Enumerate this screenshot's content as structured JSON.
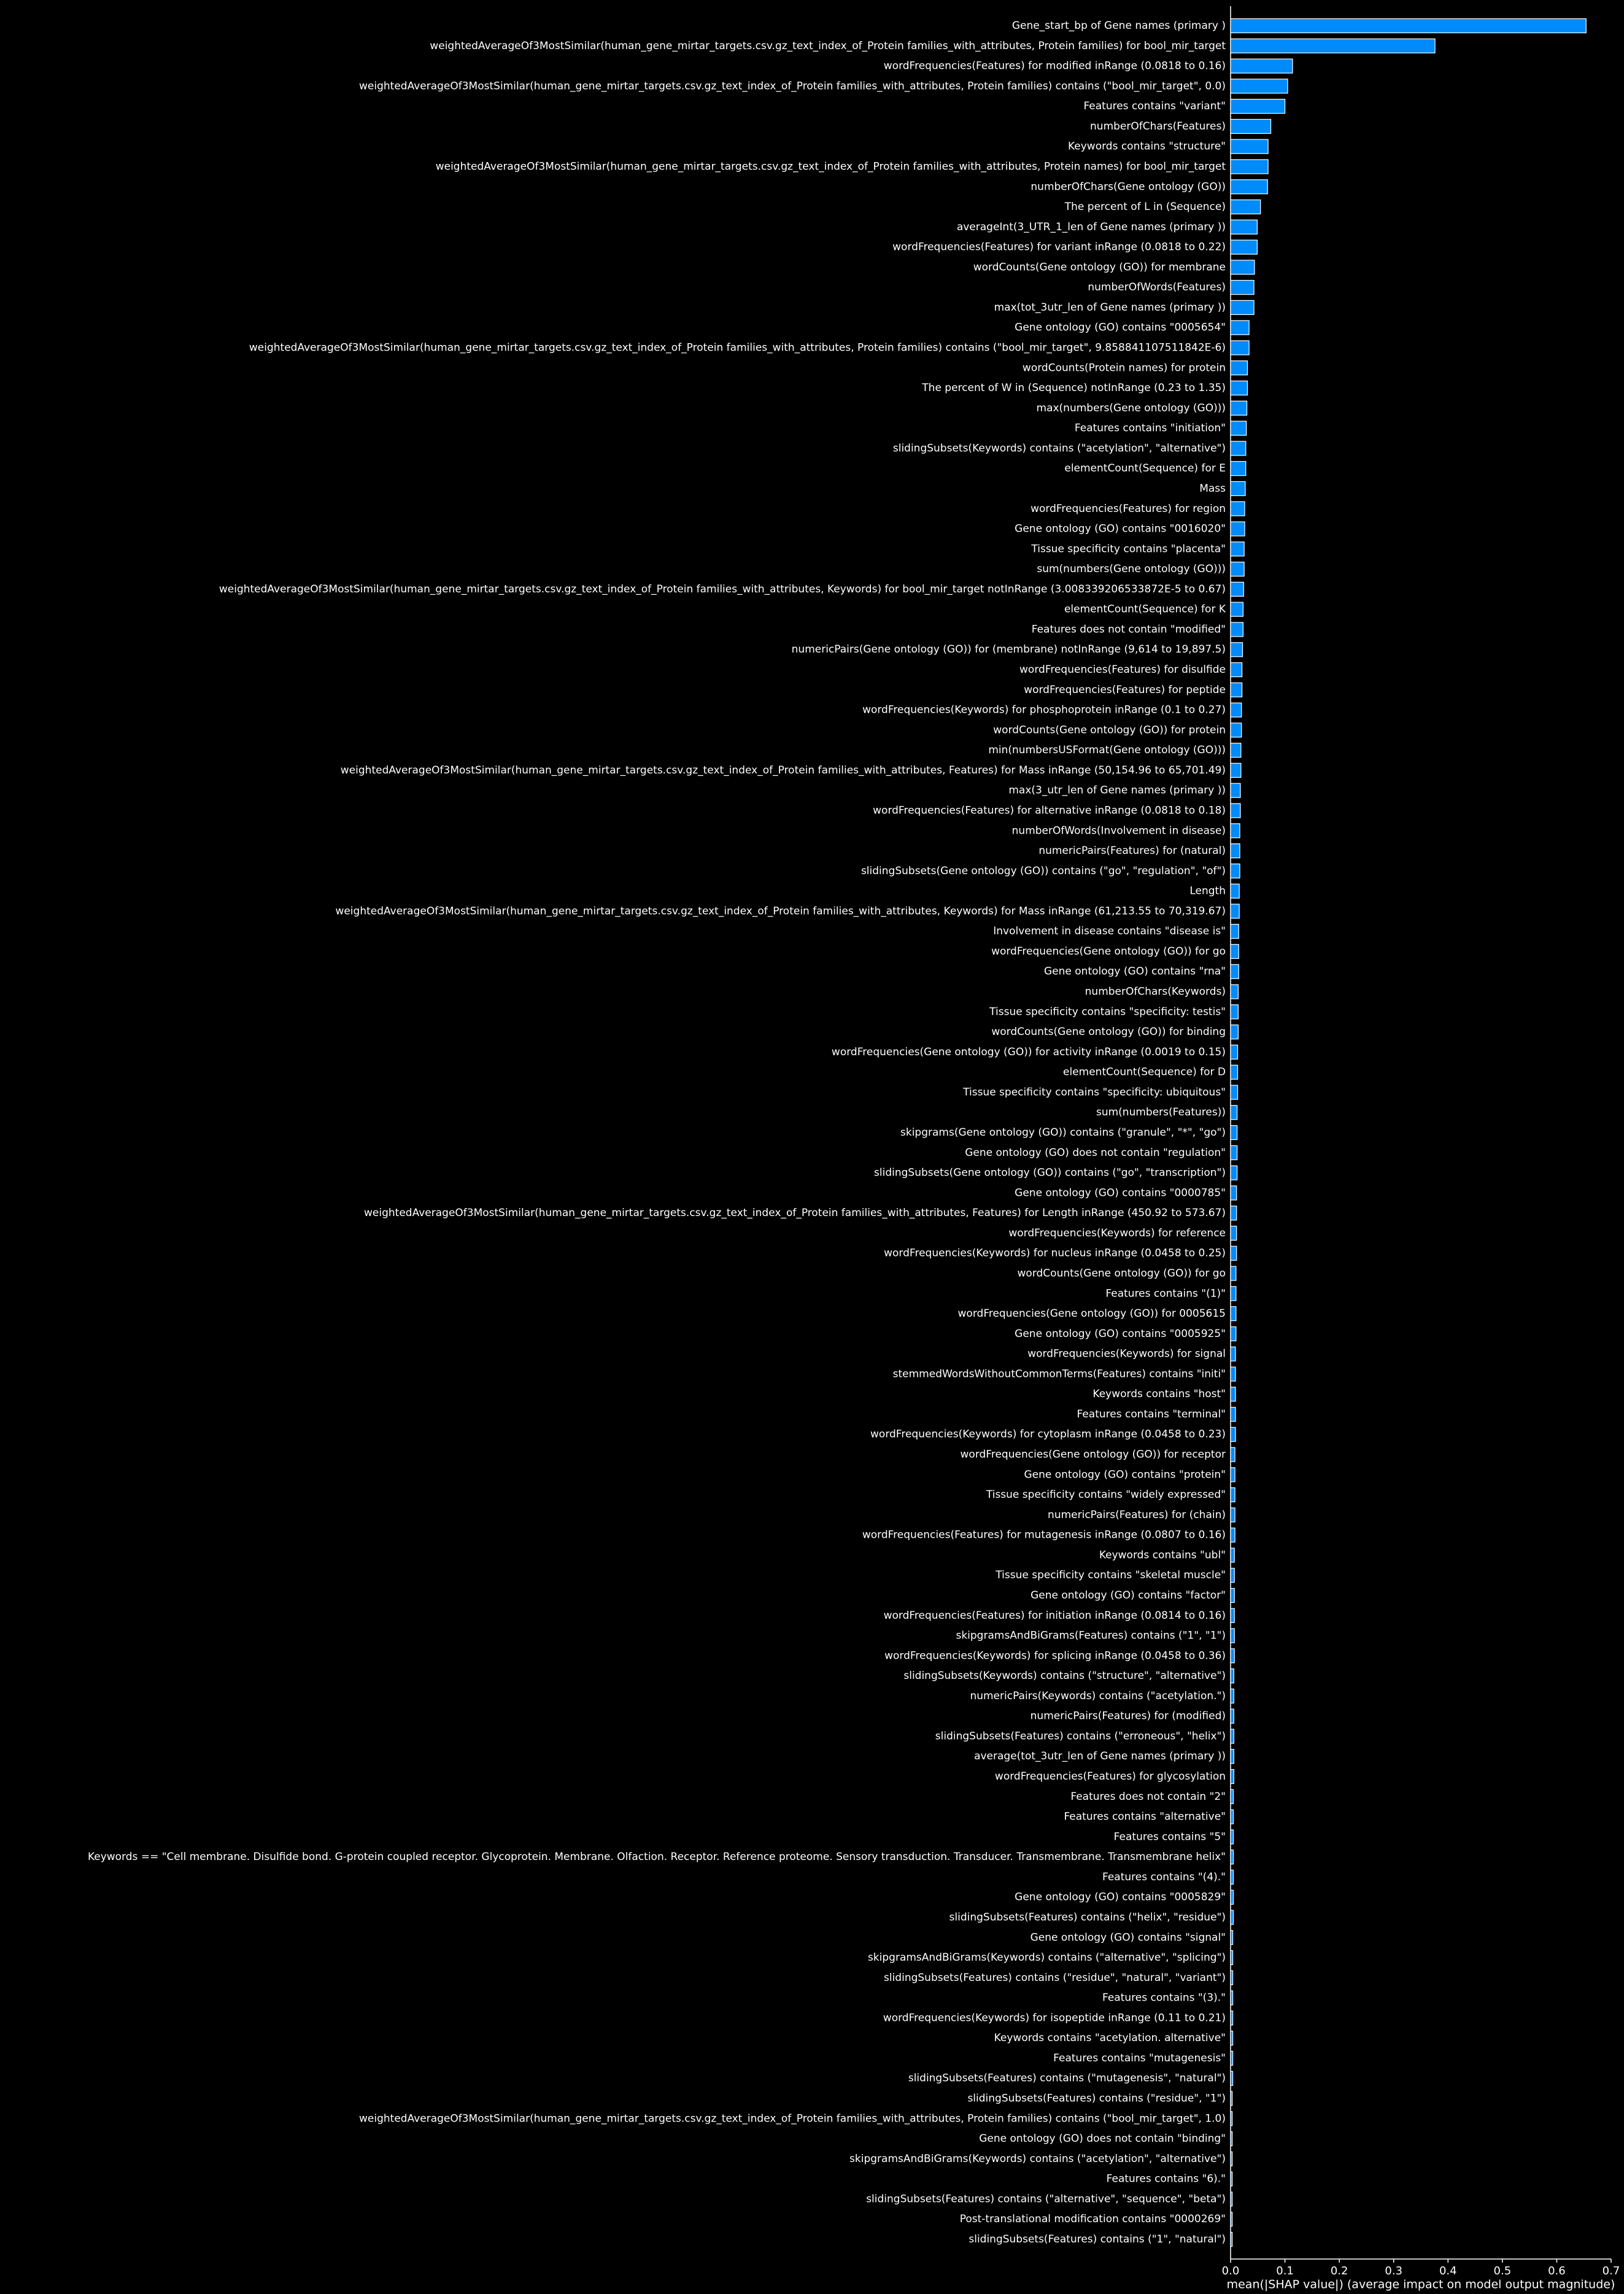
{
  "chart_data": {
    "type": "bar",
    "orientation": "horizontal",
    "color": "#008bfb",
    "edgecolor": "#ffffff",
    "xlabel": "mean(|SHAP value|) (average impact on model output magnitude)",
    "xlim": [
      0,
      0.7
    ],
    "xticks": [
      {
        "value": 0,
        "label": "0.0"
      },
      0.1,
      0.2,
      0.3,
      0.4,
      0.5,
      0.6,
      0.7
    ],
    "categories": [
      "Gene_start_bp of Gene names  (primary )",
      "weightedAverageOf3MostSimilar(human_gene_mirtar_targets.csv.gz_text_index_of_Protein families_with_attributes, Protein families) for bool_mir_target",
      "wordFrequencies(Features) for modified inRange (0.0818 to 0.16)",
      "weightedAverageOf3MostSimilar(human_gene_mirtar_targets.csv.gz_text_index_of_Protein families_with_attributes, Protein families) contains (\"bool_mir_target\", 0.0)",
      "Features contains \"variant\"",
      "numberOfChars(Features)",
      "Keywords contains \"structure\"",
      "weightedAverageOf3MostSimilar(human_gene_mirtar_targets.csv.gz_text_index_of_Protein families_with_attributes, Protein names) for bool_mir_target",
      "numberOfChars(Gene ontology (GO))",
      "The percent of L in (Sequence)",
      "averageInt(3_UTR_1_len of Gene names  (primary ))",
      "wordFrequencies(Features) for variant inRange (0.0818 to 0.22)",
      "wordCounts(Gene ontology (GO)) for membrane",
      "numberOfWords(Features)",
      "max(tot_3utr_len of Gene names  (primary ))",
      "Gene ontology (GO) contains \"0005654\"",
      "weightedAverageOf3MostSimilar(human_gene_mirtar_targets.csv.gz_text_index_of_Protein families_with_attributes, Protein families) contains (\"bool_mir_target\", 9.858841107511842E-6)",
      "wordCounts(Protein names) for protein",
      "The percent of W in (Sequence) notInRange (0.23 to 1.35)",
      "max(numbers(Gene ontology (GO)))",
      "Features contains \"initiation\"",
      "slidingSubsets(Keywords) contains (\"acetylation\", \"alternative\")",
      "elementCount(Sequence) for E",
      "Mass",
      "wordFrequencies(Features) for region",
      "Gene ontology (GO) contains \"0016020\"",
      "Tissue specificity contains \"placenta\"",
      "sum(numbers(Gene ontology (GO)))",
      "weightedAverageOf3MostSimilar(human_gene_mirtar_targets.csv.gz_text_index_of_Protein families_with_attributes, Keywords) for bool_mir_target notInRange (3.008339206533872E-5 to 0.67)",
      "elementCount(Sequence) for K",
      "Features does not contain \"modified\"",
      "numericPairs(Gene ontology (GO)) for (membrane) notInRange (9,614 to 19,897.5)",
      "wordFrequencies(Features) for disulfide",
      "wordFrequencies(Features) for peptide",
      "wordFrequencies(Keywords) for phosphoprotein inRange (0.1 to 0.27)",
      "wordCounts(Gene ontology (GO)) for protein",
      "min(numbersUSFormat(Gene ontology (GO)))",
      "weightedAverageOf3MostSimilar(human_gene_mirtar_targets.csv.gz_text_index_of_Protein families_with_attributes, Features) for Mass inRange (50,154.96 to 65,701.49)",
      "max(3_utr_len of Gene names  (primary ))",
      "wordFrequencies(Features) for alternative inRange (0.0818 to 0.18)",
      "numberOfWords(Involvement in disease)",
      "numericPairs(Features) for (natural)",
      "slidingSubsets(Gene ontology (GO)) contains (\"go\", \"regulation\", \"of\")",
      "Length",
      "weightedAverageOf3MostSimilar(human_gene_mirtar_targets.csv.gz_text_index_of_Protein families_with_attributes, Keywords) for Mass inRange (61,213.55 to 70,319.67)",
      "Involvement in disease contains \"disease is\"",
      "wordFrequencies(Gene ontology (GO)) for go",
      "Gene ontology (GO) contains \"rna\"",
      "numberOfChars(Keywords)",
      "Tissue specificity contains \"specificity: testis\"",
      "wordCounts(Gene ontology (GO)) for binding",
      "wordFrequencies(Gene ontology (GO)) for activity inRange (0.0019 to 0.15)",
      "elementCount(Sequence) for D",
      "Tissue specificity contains \"specificity: ubiquitous\"",
      "sum(numbers(Features))",
      "skipgrams(Gene ontology (GO)) contains (\"granule\", \"*\", \"go\")",
      "Gene ontology (GO) does not contain \"regulation\"",
      "slidingSubsets(Gene ontology (GO)) contains (\"go\", \"transcription\")",
      "Gene ontology (GO) contains \"0000785\"",
      "weightedAverageOf3MostSimilar(human_gene_mirtar_targets.csv.gz_text_index_of_Protein families_with_attributes, Features) for Length inRange (450.92 to 573.67)",
      "wordFrequencies(Keywords) for reference",
      "wordFrequencies(Keywords) for nucleus inRange (0.0458 to 0.25)",
      "wordCounts(Gene ontology (GO)) for go",
      "Features contains \"(1)\"",
      "wordFrequencies(Gene ontology (GO)) for 0005615",
      "Gene ontology (GO) contains \"0005925\"",
      "wordFrequencies(Keywords) for signal",
      "stemmedWordsWithoutCommonTerms(Features) contains \"initi\"",
      "Keywords contains \"host\"",
      "Features contains \"terminal\"",
      "wordFrequencies(Keywords) for cytoplasm inRange (0.0458 to 0.23)",
      "wordFrequencies(Gene ontology (GO)) for receptor",
      "Gene ontology (GO) contains \"protein\"",
      "Tissue specificity contains \"widely expressed\"",
      "numericPairs(Features) for (chain)",
      "wordFrequencies(Features) for mutagenesis inRange (0.0807 to 0.16)",
      "Keywords contains \"ubl\"",
      "Tissue specificity contains \"skeletal muscle\"",
      "Gene ontology (GO) contains \"factor\"",
      "wordFrequencies(Features) for initiation inRange (0.0814 to 0.16)",
      "skipgramsAndBiGrams(Features) contains (\"1\", \"1\")",
      "wordFrequencies(Keywords) for splicing inRange (0.0458 to 0.36)",
      "slidingSubsets(Keywords) contains (\"structure\", \"alternative\")",
      "numericPairs(Keywords) contains (\"acetylation.\")",
      "numericPairs(Features) for (modified)",
      "slidingSubsets(Features) contains (\"erroneous\", \"helix\")",
      "average(tot_3utr_len of Gene names  (primary ))",
      "wordFrequencies(Features) for glycosylation",
      "Features does not contain \"2\"",
      "Features contains \"alternative\"",
      "Features contains \"5\"",
      "Keywords == \"Cell membrane. Disulfide bond. G-protein coupled receptor. Glycoprotein. Membrane. Olfaction. Receptor. Reference proteome. Sensory transduction. Transducer. Transmembrane. Transmembrane helix\"",
      "Features contains \"(4).\"",
      "Gene ontology (GO) contains \"0005829\"",
      "slidingSubsets(Features) contains (\"helix\", \"residue\")",
      "Gene ontology (GO) contains \"signal\"",
      "skipgramsAndBiGrams(Keywords) contains (\"alternative\", \"splicing\")",
      "slidingSubsets(Features) contains (\"residue\", \"natural\", \"variant\")",
      "Features contains \"(3).\"",
      "wordFrequencies(Keywords) for isopeptide inRange (0.11 to 0.21)",
      "Keywords contains \"acetylation. alternative\"",
      "Features contains \"mutagenesis\"",
      "slidingSubsets(Features) contains (\"mutagenesis\", \"natural\")",
      "slidingSubsets(Features) contains (\"residue\", \"1\")",
      "weightedAverageOf3MostSimilar(human_gene_mirtar_targets.csv.gz_text_index_of_Protein families_with_attributes, Protein families) contains (\"bool_mir_target\", 1.0)",
      "Gene ontology (GO) does not contain \"binding\"",
      "skipgramsAndBiGrams(Keywords) contains (\"acetylation\", \"alternative\")",
      "Features contains \"6).\"",
      "slidingSubsets(Features) contains (\"alternative\", \"sequence\", \"beta\")",
      "Post-translational modification contains \"0000269\"",
      "slidingSubsets(Features) contains (\"1\", \"natural\")"
    ],
    "values": [
      0.654,
      0.376,
      0.114,
      0.105,
      0.1,
      0.074,
      0.069,
      0.069,
      0.068,
      0.055,
      0.049,
      0.049,
      0.044,
      0.043,
      0.043,
      0.034,
      0.034,
      0.031,
      0.031,
      0.03,
      0.029,
      0.028,
      0.028,
      0.027,
      0.026,
      0.026,
      0.025,
      0.025,
      0.024,
      0.023,
      0.023,
      0.022,
      0.021,
      0.021,
      0.02,
      0.02,
      0.019,
      0.019,
      0.018,
      0.018,
      0.017,
      0.017,
      0.017,
      0.016,
      0.016,
      0.015,
      0.015,
      0.015,
      0.014,
      0.014,
      0.014,
      0.013,
      0.013,
      0.013,
      0.012,
      0.012,
      0.012,
      0.012,
      0.011,
      0.011,
      0.011,
      0.011,
      0.01,
      0.01,
      0.01,
      0.01,
      0.009,
      0.009,
      0.009,
      0.009,
      0.009,
      0.008,
      0.008,
      0.008,
      0.008,
      0.008,
      0.007,
      0.007,
      0.007,
      0.007,
      0.007,
      0.007,
      0.006,
      0.006,
      0.006,
      0.006,
      0.006,
      0.006,
      0.005,
      0.005,
      0.005,
      0.005,
      0.005,
      0.005,
      0.005,
      0.004,
      0.004,
      0.004,
      0.004,
      0.004,
      0.004,
      0.004,
      0.004,
      0.003,
      0.003,
      0.003,
      0.003,
      0.003,
      0.003,
      0.003,
      0.003
    ]
  }
}
